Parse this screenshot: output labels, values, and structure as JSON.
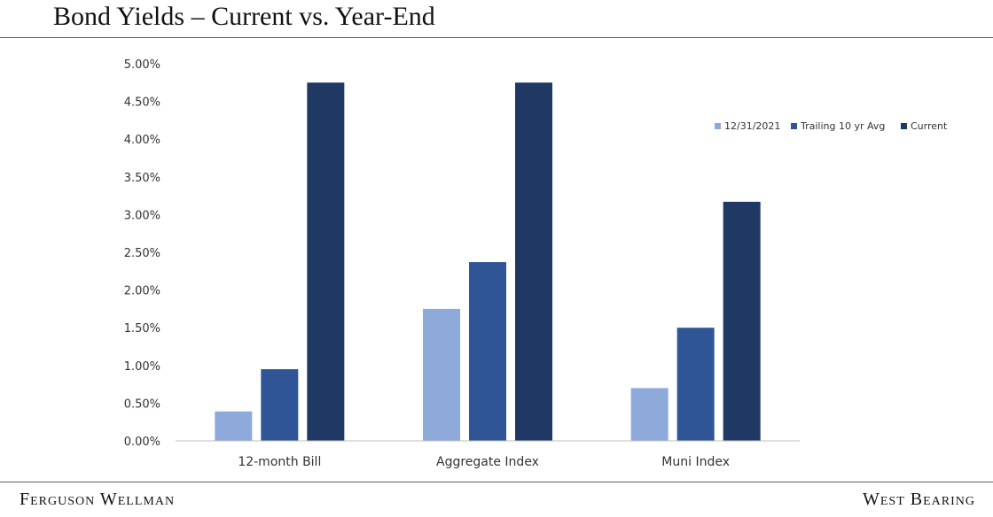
{
  "header": {
    "title": "Bond Yields – Current vs. Year-End"
  },
  "footer": {
    "left": "Ferguson Wellman",
    "right": "West Bearing"
  },
  "chart_data": {
    "type": "bar",
    "title": "",
    "xlabel": "",
    "ylabel": "",
    "categories": [
      "12-month Bill",
      "Aggregate Index",
      "Muni Index"
    ],
    "series": [
      {
        "name": "12/31/2021",
        "color": "#8eaadb",
        "values": [
          0.0039,
          0.0175,
          0.007
        ]
      },
      {
        "name": "Trailing 10 yr Avg",
        "color": "#2f5597",
        "values": [
          0.0095,
          0.0237,
          0.015
        ]
      },
      {
        "name": "Current",
        "color": "#1f3864",
        "values": [
          0.0475,
          0.0475,
          0.0317
        ]
      }
    ],
    "ylim": [
      0,
      0.05
    ],
    "yticks": [
      "0.00%",
      "0.50%",
      "1.00%",
      "1.50%",
      "2.00%",
      "2.50%",
      "3.00%",
      "3.50%",
      "4.00%",
      "4.50%",
      "5.00%"
    ],
    "grid": false,
    "legend_position": "top-right"
  }
}
